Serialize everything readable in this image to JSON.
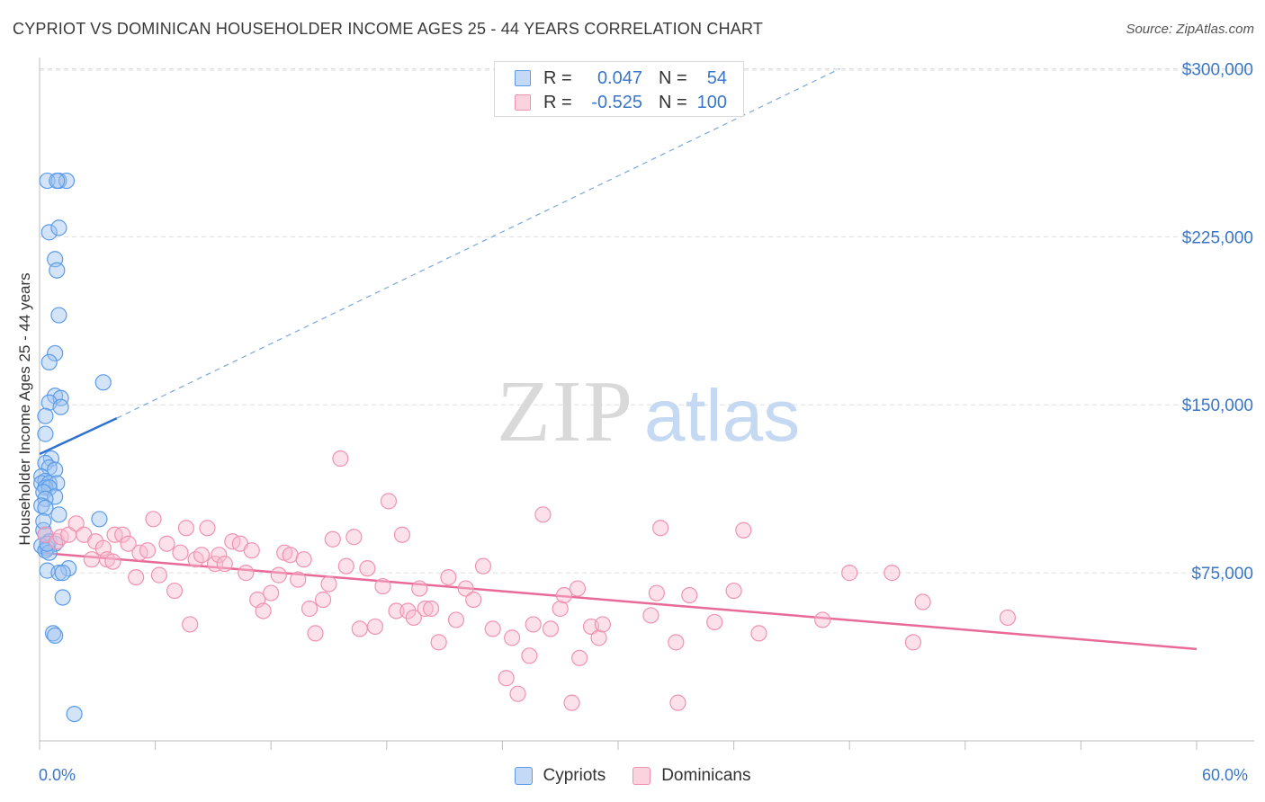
{
  "title": "CYPRIOT VS DOMINICAN HOUSEHOLDER INCOME AGES 25 - 44 YEARS CORRELATION CHART",
  "source": "Source: ZipAtlas.com",
  "watermark": {
    "zip": "ZIP",
    "atlas": "atlas"
  },
  "legend_top": {
    "rows": [
      {
        "r_label": "R =",
        "r_value": "0.047",
        "n_label": "N =",
        "n_value": "54",
        "color": "#5b9be8"
      },
      {
        "r_label": "R =",
        "r_value": "-0.525",
        "n_label": "N =",
        "n_value": "100",
        "color": "#f093b0"
      }
    ]
  },
  "legend_bottom": [
    {
      "label": "Cypriots",
      "color": "#5b9be8"
    },
    {
      "label": "Dominicans",
      "color": "#f093b0"
    }
  ],
  "x_axis": {
    "min_label": "0.0%",
    "max_label": "60.0%"
  },
  "chart_data": {
    "type": "scatter",
    "title": "CYPRIOT VS DOMINICAN HOUSEHOLDER INCOME AGES 25 - 44 YEARS CORRELATION CHART",
    "xlabel": "",
    "ylabel": "Householder Income Ages 25 - 44 years",
    "xlim": [
      0,
      60
    ],
    "ylim": [
      0,
      305000
    ],
    "y_ticks": [
      {
        "value": 75000,
        "label": "$75,000"
      },
      {
        "value": 150000,
        "label": "$150,000"
      },
      {
        "value": 225000,
        "label": "$225,000"
      },
      {
        "value": 300000,
        "label": "$300,000"
      }
    ],
    "grid": true,
    "series": [
      {
        "name": "Cypriots",
        "color": "#5b9be8",
        "points": [
          [
            0.4,
            250000
          ],
          [
            1.0,
            250000
          ],
          [
            1.4,
            250000
          ],
          [
            0.9,
            250000
          ],
          [
            0.5,
            227000
          ],
          [
            1.0,
            229000
          ],
          [
            0.8,
            215000
          ],
          [
            0.9,
            210000
          ],
          [
            1.0,
            190000
          ],
          [
            0.8,
            173000
          ],
          [
            0.5,
            169000
          ],
          [
            3.3,
            160000
          ],
          [
            0.8,
            154000
          ],
          [
            1.1,
            153000
          ],
          [
            0.5,
            151000
          ],
          [
            1.1,
            149000
          ],
          [
            0.3,
            145000
          ],
          [
            0.3,
            137000
          ],
          [
            0.6,
            126000
          ],
          [
            0.3,
            124000
          ],
          [
            0.5,
            122000
          ],
          [
            0.8,
            121000
          ],
          [
            0.1,
            118000
          ],
          [
            0.3,
            116000
          ],
          [
            0.1,
            115000
          ],
          [
            0.5,
            115000
          ],
          [
            0.9,
            115000
          ],
          [
            0.3,
            113000
          ],
          [
            0.5,
            113000
          ],
          [
            0.2,
            111000
          ],
          [
            0.8,
            109000
          ],
          [
            0.3,
            108000
          ],
          [
            0.1,
            105000
          ],
          [
            0.3,
            104000
          ],
          [
            1.0,
            101000
          ],
          [
            3.1,
            99000
          ],
          [
            0.2,
            94000
          ],
          [
            0.3,
            92000
          ],
          [
            0.5,
            89000
          ],
          [
            0.8,
            88000
          ],
          [
            0.1,
            87000
          ],
          [
            0.4,
            86000
          ],
          [
            0.3,
            85000
          ],
          [
            0.5,
            84000
          ],
          [
            1.5,
            77000
          ],
          [
            0.4,
            76000
          ],
          [
            1.0,
            75000
          ],
          [
            1.2,
            75000
          ],
          [
            1.2,
            64000
          ],
          [
            0.7,
            48000
          ],
          [
            0.8,
            47000
          ],
          [
            1.8,
            12000
          ],
          [
            0.2,
            98000
          ],
          [
            0.4,
            88000
          ]
        ],
        "trend": {
          "x": [
            0,
            4
          ],
          "y": [
            128000,
            144000
          ]
        },
        "trend_extension": {
          "x": [
            4,
            41.5
          ],
          "y": [
            144000,
            300000
          ]
        }
      },
      {
        "name": "Dominicans",
        "color": "#f093b0",
        "points": [
          [
            0.3,
            92000
          ],
          [
            0.9,
            89000
          ],
          [
            1.1,
            91000
          ],
          [
            1.5,
            92000
          ],
          [
            1.9,
            97000
          ],
          [
            2.3,
            92000
          ],
          [
            2.7,
            81000
          ],
          [
            2.9,
            89000
          ],
          [
            3.3,
            86000
          ],
          [
            3.5,
            81000
          ],
          [
            3.9,
            92000
          ],
          [
            4.3,
            92000
          ],
          [
            4.6,
            88000
          ],
          [
            5.0,
            73000
          ],
          [
            5.2,
            84000
          ],
          [
            5.6,
            85000
          ],
          [
            5.9,
            99000
          ],
          [
            6.2,
            74000
          ],
          [
            6.6,
            88000
          ],
          [
            7.0,
            67000
          ],
          [
            7.3,
            84000
          ],
          [
            7.6,
            95000
          ],
          [
            7.8,
            52000
          ],
          [
            8.1,
            81000
          ],
          [
            8.4,
            83000
          ],
          [
            8.7,
            95000
          ],
          [
            9.1,
            79000
          ],
          [
            9.3,
            83000
          ],
          [
            9.6,
            79000
          ],
          [
            10.0,
            89000
          ],
          [
            10.4,
            88000
          ],
          [
            10.7,
            75000
          ],
          [
            11.0,
            85000
          ],
          [
            11.3,
            63000
          ],
          [
            11.6,
            58000
          ],
          [
            12.0,
            66000
          ],
          [
            12.4,
            74000
          ],
          [
            12.7,
            84000
          ],
          [
            13.0,
            83000
          ],
          [
            13.4,
            72000
          ],
          [
            13.7,
            81000
          ],
          [
            14.0,
            59000
          ],
          [
            14.3,
            48000
          ],
          [
            14.7,
            63000
          ],
          [
            15.0,
            70000
          ],
          [
            15.2,
            90000
          ],
          [
            15.6,
            126000
          ],
          [
            15.9,
            78000
          ],
          [
            16.3,
            91000
          ],
          [
            16.6,
            50000
          ],
          [
            17.0,
            77000
          ],
          [
            17.4,
            51000
          ],
          [
            17.8,
            69000
          ],
          [
            18.1,
            107000
          ],
          [
            18.5,
            58000
          ],
          [
            18.8,
            92000
          ],
          [
            19.1,
            58000
          ],
          [
            19.4,
            55000
          ],
          [
            19.7,
            68000
          ],
          [
            20.0,
            59000
          ],
          [
            20.3,
            59000
          ],
          [
            20.7,
            44000
          ],
          [
            21.2,
            73000
          ],
          [
            21.6,
            54000
          ],
          [
            22.1,
            68000
          ],
          [
            22.5,
            63000
          ],
          [
            23.0,
            78000
          ],
          [
            23.5,
            50000
          ],
          [
            24.2,
            28000
          ],
          [
            24.5,
            46000
          ],
          [
            24.8,
            21000
          ],
          [
            25.4,
            38000
          ],
          [
            25.6,
            52000
          ],
          [
            26.1,
            101000
          ],
          [
            26.5,
            50000
          ],
          [
            27.0,
            59000
          ],
          [
            27.2,
            65000
          ],
          [
            27.6,
            17000
          ],
          [
            27.9,
            68000
          ],
          [
            28.0,
            37000
          ],
          [
            28.6,
            51000
          ],
          [
            29.0,
            46000
          ],
          [
            29.2,
            52000
          ],
          [
            31.7,
            56000
          ],
          [
            32.0,
            66000
          ],
          [
            32.2,
            95000
          ],
          [
            33.0,
            44000
          ],
          [
            33.1,
            17000
          ],
          [
            33.7,
            65000
          ],
          [
            35.0,
            53000
          ],
          [
            36.0,
            67000
          ],
          [
            36.5,
            94000
          ],
          [
            37.3,
            48000
          ],
          [
            40.6,
            54000
          ],
          [
            42.0,
            75000
          ],
          [
            44.2,
            75000
          ],
          [
            45.3,
            44000
          ],
          [
            45.8,
            62000
          ],
          [
            50.2,
            55000
          ],
          [
            3.8,
            80000
          ]
        ],
        "trend": {
          "x": [
            0,
            60
          ],
          "y": [
            84000,
            41000
          ]
        }
      }
    ]
  }
}
